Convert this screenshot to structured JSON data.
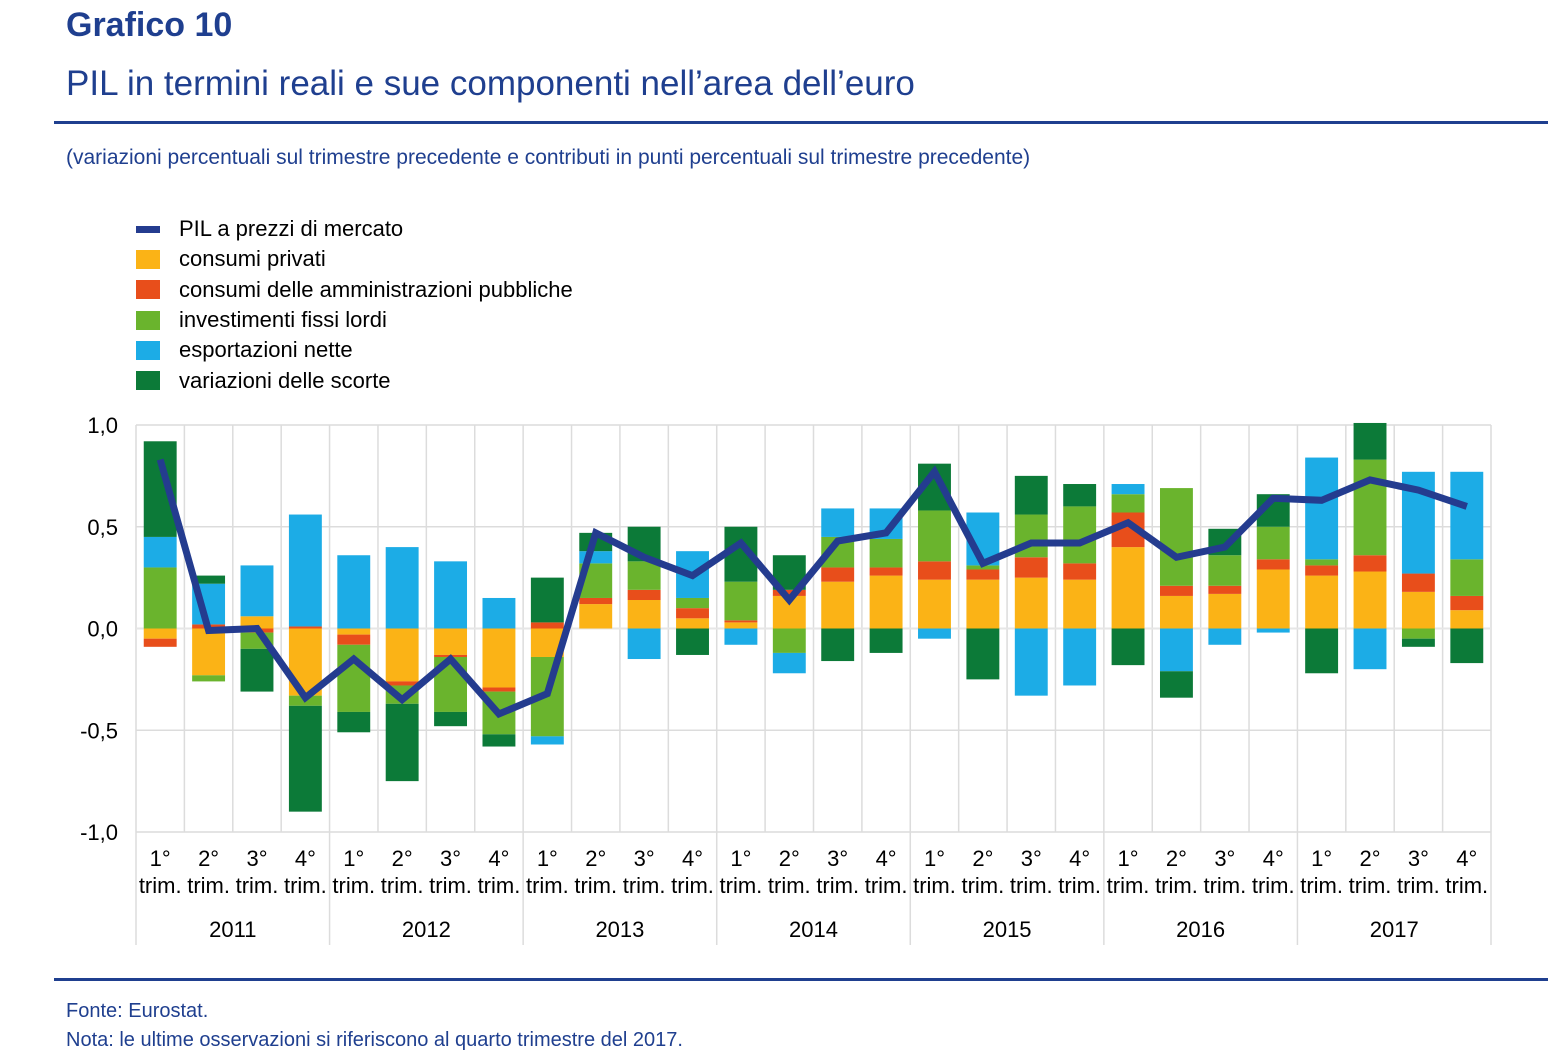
{
  "header": {
    "figure_number": "Grafico 10",
    "title": "PIL in termini reali e sue componenti nell’area dell’euro",
    "subtitle": "(variazioni percentuali sul trimestre precedente e contributi in punti percentuali sul trimestre precedente)"
  },
  "footer": {
    "source": "Fonte: Eurostat.",
    "note": "Nota: le ultime osservazioni si riferiscono al quarto trimestre del 2017."
  },
  "chart_data": {
    "type": "bar",
    "stacked": true,
    "title": "PIL in termini reali e sue componenti nell’area dell’euro",
    "xlabel": "",
    "ylabel": "",
    "ylim": [
      -1.0,
      1.0
    ],
    "yticks": [
      1.0,
      0.5,
      0.0,
      -0.5,
      -1.0
    ],
    "ytick_labels": [
      "1,0",
      "0,5",
      "0,0",
      "-0,5",
      "-1,0"
    ],
    "grid": true,
    "legend_position": "top-left",
    "quarter_labels": [
      "1°",
      "2°",
      "3°",
      "4°"
    ],
    "quarter_suffix": "trim.",
    "years": [
      "2011",
      "2012",
      "2013",
      "2014",
      "2015",
      "2016",
      "2017"
    ],
    "categories": [
      "2011 Q1",
      "2011 Q2",
      "2011 Q3",
      "2011 Q4",
      "2012 Q1",
      "2012 Q2",
      "2012 Q3",
      "2012 Q4",
      "2013 Q1",
      "2013 Q2",
      "2013 Q3",
      "2013 Q4",
      "2014 Q1",
      "2014 Q2",
      "2014 Q3",
      "2014 Q4",
      "2015 Q1",
      "2015 Q2",
      "2015 Q3",
      "2015 Q4",
      "2016 Q1",
      "2016 Q2",
      "2016 Q3",
      "2016 Q4",
      "2017 Q1",
      "2017 Q2",
      "2017 Q3",
      "2017 Q4"
    ],
    "series": [
      {
        "name": "consumi privati",
        "kind": "bar",
        "color": "#fbb316",
        "values": [
          -0.05,
          -0.23,
          0.06,
          -0.33,
          -0.03,
          -0.26,
          -0.13,
          -0.29,
          -0.14,
          0.12,
          0.14,
          0.05,
          0.03,
          0.16,
          0.23,
          0.26,
          0.24,
          0.24,
          0.25,
          0.24,
          0.4,
          0.16,
          0.17,
          0.29,
          0.26,
          0.28,
          0.18,
          0.09
        ]
      },
      {
        "name": "consumi delle amministrazioni pubbliche",
        "kind": "bar",
        "color": "#e84e1b",
        "values": [
          -0.04,
          0.02,
          -0.02,
          0.01,
          -0.05,
          -0.02,
          -0.01,
          -0.02,
          0.03,
          0.03,
          0.05,
          0.05,
          0.01,
          0.03,
          0.07,
          0.04,
          0.09,
          0.05,
          0.1,
          0.08,
          0.17,
          0.05,
          0.04,
          0.05,
          0.05,
          0.08,
          0.09,
          0.07
        ]
      },
      {
        "name": "investimenti fissi lordi",
        "kind": "bar",
        "color": "#6ab42d",
        "values": [
          0.3,
          -0.03,
          -0.08,
          -0.05,
          -0.33,
          -0.09,
          -0.27,
          -0.21,
          -0.39,
          0.17,
          0.14,
          0.05,
          0.19,
          -0.12,
          0.15,
          0.14,
          0.25,
          0.02,
          0.21,
          0.28,
          0.09,
          0.48,
          0.15,
          0.16,
          0.03,
          0.47,
          -0.05,
          0.18
        ]
      },
      {
        "name": "esportazioni nette",
        "kind": "bar",
        "color": "#1cace6",
        "values": [
          0.15,
          0.2,
          0.25,
          0.55,
          0.36,
          0.4,
          0.33,
          0.15,
          -0.04,
          0.06,
          -0.15,
          0.23,
          -0.08,
          -0.1,
          0.14,
          0.15,
          -0.05,
          0.26,
          -0.33,
          -0.28,
          0.05,
          -0.21,
          -0.08,
          -0.02,
          0.5,
          -0.2,
          0.5,
          0.43
        ]
      },
      {
        "name": "variazioni delle scorte",
        "kind": "bar",
        "color": "#0c7a38",
        "values": [
          0.47,
          0.04,
          -0.21,
          -0.52,
          -0.1,
          -0.38,
          -0.07,
          -0.06,
          0.22,
          0.09,
          0.17,
          -0.13,
          0.27,
          0.17,
          -0.16,
          -0.12,
          0.23,
          -0.25,
          0.19,
          0.11,
          -0.18,
          -0.13,
          0.13,
          0.16,
          -0.22,
          0.18,
          -0.04,
          -0.17
        ]
      },
      {
        "name": "PIL a prezzi di mercato",
        "kind": "line",
        "color": "#243c8f",
        "values": [
          0.83,
          -0.01,
          0.0,
          -0.34,
          -0.15,
          -0.35,
          -0.15,
          -0.42,
          -0.32,
          0.47,
          0.35,
          0.26,
          0.42,
          0.14,
          0.43,
          0.47,
          0.77,
          0.32,
          0.42,
          0.42,
          0.52,
          0.35,
          0.4,
          0.64,
          0.63,
          0.73,
          0.68,
          0.6
        ]
      }
    ],
    "legend_order": [
      "PIL a prezzi di mercato",
      "consumi privati",
      "consumi delle amministrazioni pubbliche",
      "investimenti fissi lordi",
      "esportazioni nette",
      "variazioni delle scorte"
    ]
  }
}
